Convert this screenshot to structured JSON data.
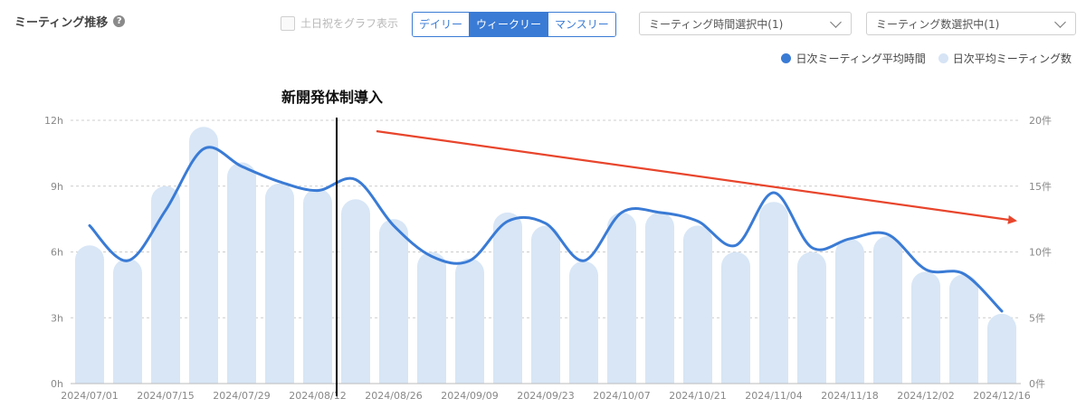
{
  "header": {
    "title": "ミーティング推移",
    "help_icon": "?",
    "holiday_label": "土日祝をグラフ表示",
    "period_tabs": [
      {
        "label": "デイリー",
        "active": false
      },
      {
        "label": "ウィークリー",
        "active": true
      },
      {
        "label": "マンスリー",
        "active": false
      }
    ],
    "select_time": "ミーティング時間選択中(1)",
    "select_count": "ミーティング数選択中(1)"
  },
  "legend": [
    {
      "label": "日次ミーティング平均時間",
      "color": "#3a7bd5"
    },
    {
      "label": "日次平均ミーティング数",
      "color": "#d6e4f5"
    }
  ],
  "colors": {
    "line": "#3a7bd5",
    "bar": "#d8e6f6",
    "arrow": "#e8452c",
    "grid": "#cccccc"
  },
  "chart_data": {
    "type": "bar",
    "title": "ミーティング推移",
    "annotation": "新開発体制導入",
    "annotation_after": "2024/08/19",
    "categories": [
      "2024/07/01",
      "2024/07/08",
      "2024/07/15",
      "2024/07/22",
      "2024/07/29",
      "2024/08/05",
      "2024/08/12",
      "2024/08/19",
      "2024/08/26",
      "2024/09/02",
      "2024/09/09",
      "2024/09/16",
      "2024/09/23",
      "2024/09/30",
      "2024/10/07",
      "2024/10/14",
      "2024/10/21",
      "2024/10/28",
      "2024/11/04",
      "2024/11/11",
      "2024/11/18",
      "2024/11/25",
      "2024/12/02",
      "2024/12/09",
      "2024/12/16"
    ],
    "x_tick_labels": [
      "2024/07/01",
      "2024/07/15",
      "2024/07/29",
      "2024/08/12",
      "2024/08/26",
      "2024/09/09",
      "2024/09/23",
      "2024/10/07",
      "2024/10/21",
      "2024/11/04",
      "2024/11/18",
      "2024/12/02",
      "2024/12/16"
    ],
    "left_axis": {
      "ticks": [
        "0h",
        "3h",
        "6h",
        "9h",
        "12h"
      ],
      "range": [
        0,
        12
      ]
    },
    "right_axis": {
      "ticks": [
        "0件",
        "5件",
        "10件",
        "15件",
        "20件"
      ],
      "range": [
        0,
        20
      ]
    },
    "series": [
      {
        "name": "日次平均ミーティング数",
        "type": "bar",
        "axis": "right",
        "values": [
          10.5,
          9.5,
          15,
          19.5,
          16.8,
          15.2,
          14.8,
          14,
          12.5,
          10,
          9.5,
          13,
          12,
          9.3,
          13,
          13,
          12,
          10,
          13.8,
          10,
          11,
          11.2,
          8.5,
          8.3,
          5.3
        ]
      },
      {
        "name": "日次ミーティング平均時間",
        "type": "line",
        "axis": "left",
        "values": [
          7.2,
          5.6,
          7.9,
          10.7,
          9.9,
          9.2,
          8.8,
          9.3,
          7.2,
          5.8,
          5.6,
          7.4,
          7.3,
          5.6,
          7.8,
          7.8,
          7.4,
          6.3,
          8.7,
          6.2,
          6.6,
          6.8,
          5.2,
          5.0,
          3.3
        ]
      }
    ],
    "trend_arrow": true,
    "grid": true
  }
}
